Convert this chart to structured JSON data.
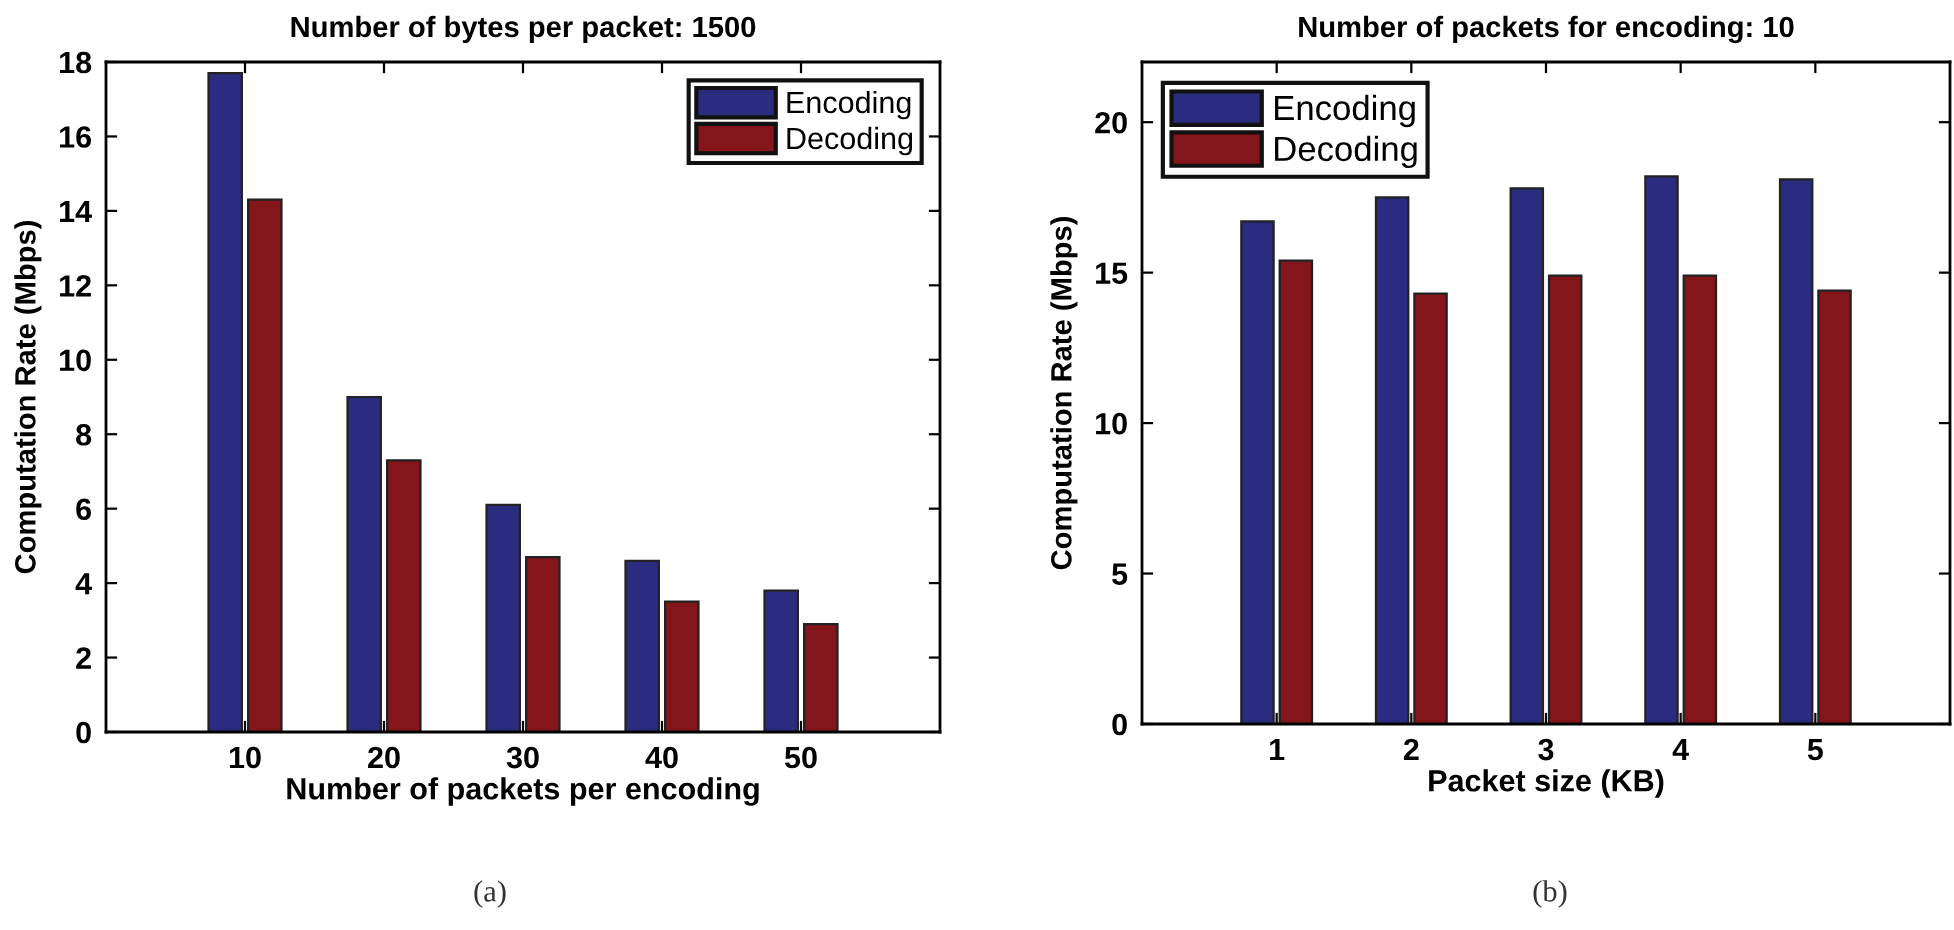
{
  "chart_data": [
    {
      "type": "bar",
      "title": "Number of bytes per packet: 1500",
      "xlabel": "Number of packets per encoding",
      "ylabel": "Computation Rate (Mbps)",
      "x": [
        10,
        20,
        30,
        40,
        50
      ],
      "series": [
        {
          "name": "Encoding",
          "color": "#2b2b80",
          "values": [
            17.7,
            9.0,
            6.1,
            4.6,
            3.8
          ]
        },
        {
          "name": "Decoding",
          "color": "#83151b",
          "values": [
            14.3,
            7.3,
            4.7,
            3.5,
            2.9
          ]
        }
      ],
      "xlim": [
        0,
        60
      ],
      "xticks": [
        10,
        20,
        30,
        40,
        50
      ],
      "ylim": [
        0,
        18
      ],
      "yticks": [
        0,
        2,
        4,
        6,
        8,
        10,
        12,
        14,
        16,
        18
      ],
      "legend": "top right",
      "annotations": [
        "(a)"
      ]
    },
    {
      "type": "bar",
      "title": "Number of packets for encoding: 10",
      "xlabel": "Packet size (KB)",
      "ylabel": "Computation Rate (Mbps)",
      "x": [
        1,
        2,
        3,
        4,
        5
      ],
      "series": [
        {
          "name": "Encoding",
          "color": "#2b2b80",
          "values": [
            16.7,
            17.5,
            17.8,
            18.2,
            18.1
          ]
        },
        {
          "name": "Decoding",
          "color": "#83151b",
          "values": [
            15.4,
            14.3,
            14.9,
            14.9,
            14.4
          ]
        }
      ],
      "xlim": [
        0,
        6
      ],
      "xticks": [
        1,
        2,
        3,
        4,
        5
      ],
      "ylim": [
        0,
        22
      ],
      "yticks": [
        0,
        5,
        10,
        15,
        20
      ],
      "legend": "top left",
      "annotations": [
        "(b)"
      ]
    }
  ]
}
